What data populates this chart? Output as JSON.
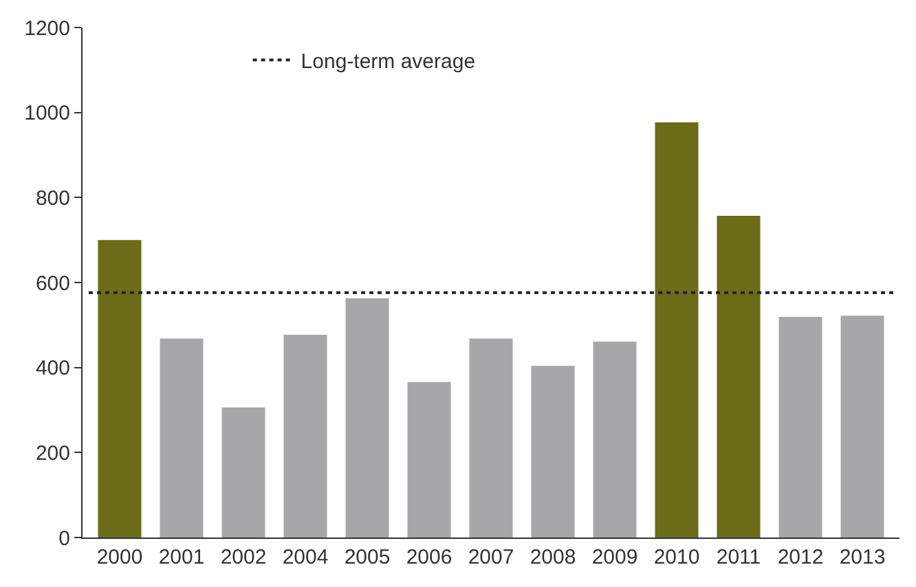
{
  "chart_data": {
    "type": "bar",
    "categories": [
      "2000",
      "2001",
      "2002",
      "2004",
      "2005",
      "2006",
      "2007",
      "2008",
      "2009",
      "2010",
      "2011",
      "2012",
      "2013"
    ],
    "values": [
      700,
      468,
      306,
      477,
      563,
      366,
      468,
      404,
      461,
      977,
      757,
      519,
      522
    ],
    "colors": [
      "#6b6c18",
      "#a7a7aa",
      "#a7a7aa",
      "#a7a7aa",
      "#a7a7aa",
      "#a7a7aa",
      "#a7a7aa",
      "#a7a7aa",
      "#a7a7aa",
      "#6b6c18",
      "#6b6c18",
      "#a7a7aa",
      "#a7a7aa"
    ],
    "ylim": [
      0,
      1200
    ],
    "yticks": [
      0,
      200,
      400,
      600,
      800,
      1000,
      1200
    ],
    "ref_lines": [
      {
        "axis": "y",
        "value": 576,
        "label": "Long-term average",
        "color": "#222222",
        "line_style": "dotted"
      }
    ],
    "grid": false,
    "legend": "top left"
  }
}
